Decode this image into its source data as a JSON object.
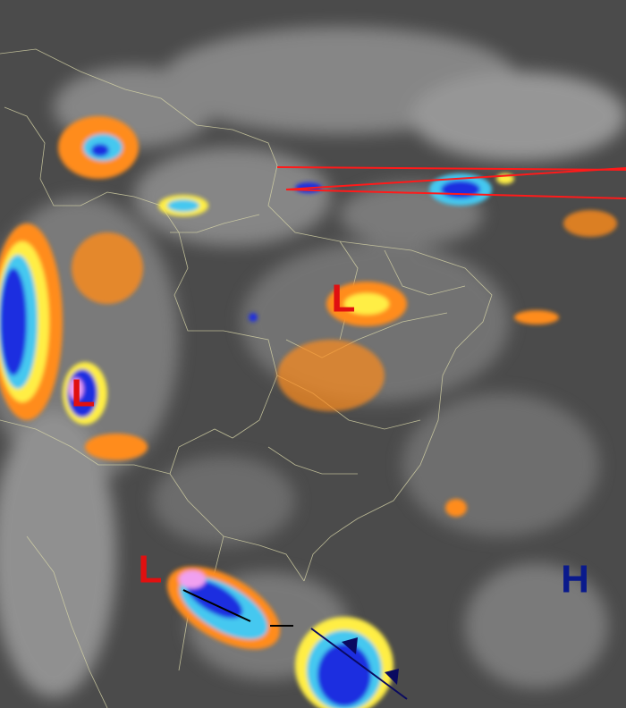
{
  "systems": [
    {
      "label": "L"
    },
    {
      "label": "L"
    },
    {
      "label": "L"
    },
    {
      "label": "H"
    }
  ]
}
